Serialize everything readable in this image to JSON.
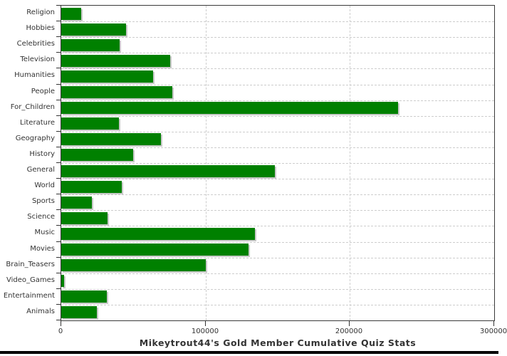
{
  "title": "Mikeytrout44's Gold Member Cumulative Quiz Stats",
  "colors": {
    "bar": "#008000",
    "bar_shadow": "#c9c9c9",
    "grid": "#cdcdcd",
    "plot_border": "#3a3a3a",
    "axis": "#333333",
    "text": "#333333",
    "background": "#ffffff",
    "bottom_rule": "#000000"
  },
  "chart_data": {
    "type": "bar",
    "orientation": "horizontal",
    "title": "Mikeytrout44's Gold Member Cumulative Quiz Stats",
    "xlabel": "",
    "ylabel": "",
    "xlim": [
      0,
      300000
    ],
    "x_ticks": [
      0,
      100000,
      200000,
      300000
    ],
    "x_tick_labels": [
      "0",
      "100000",
      "200000",
      "300000"
    ],
    "grid": "dashed",
    "legend": "none",
    "categories": [
      "Religion",
      "Hobbies",
      "Celebrities",
      "Television",
      "Humanities",
      "People",
      "For_Children",
      "Literature",
      "Geography",
      "History",
      "General",
      "World",
      "Sports",
      "Science",
      "Music",
      "Movies",
      "Brain_Teasers",
      "Video_Games",
      "Entertainment",
      "Animals"
    ],
    "values": [
      14000,
      45000,
      40500,
      75500,
      63500,
      77000,
      233500,
      40000,
      69000,
      50000,
      148000,
      42000,
      21000,
      32000,
      134000,
      130000,
      100000,
      2000,
      31500,
      24500
    ]
  }
}
